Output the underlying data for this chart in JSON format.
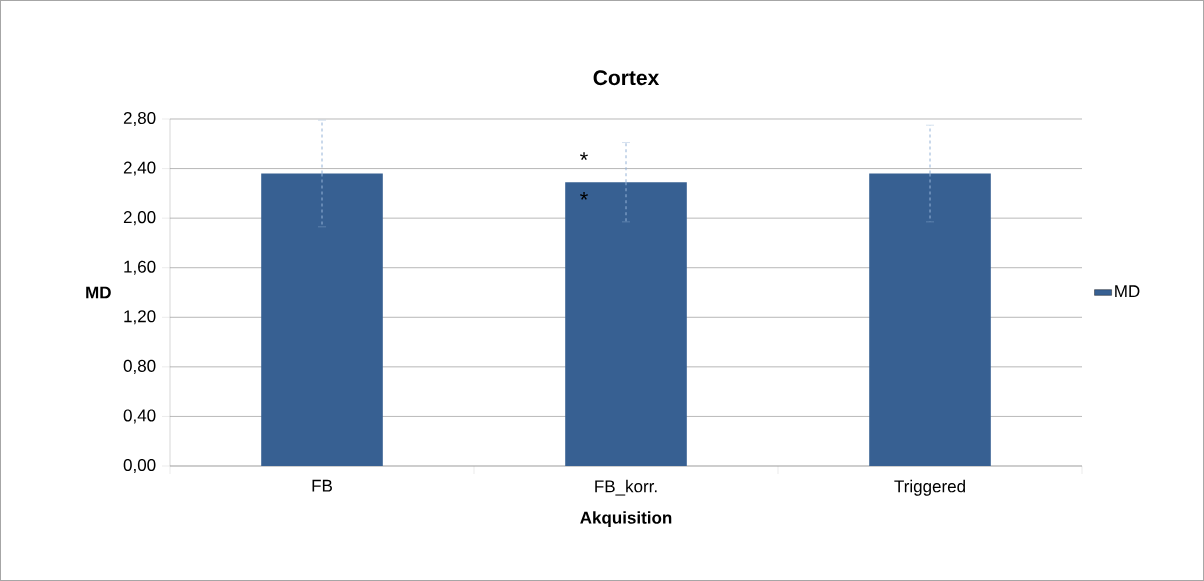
{
  "chart_data": {
    "type": "bar",
    "title": "Cortex",
    "xlabel": "Akquisition",
    "ylabel": "MD",
    "categories": [
      "FB",
      "FB_korr.",
      "Triggered"
    ],
    "series": [
      {
        "name": "MD",
        "color": "#376092",
        "values": [
          2.36,
          2.29,
          2.36
        ],
        "errors": [
          0.43,
          0.32,
          0.39
        ]
      }
    ],
    "ylim": [
      0,
      2.8
    ],
    "yticks": [
      {
        "value": 0,
        "label": "0,00"
      },
      {
        "value": 0.4,
        "label": "0,40"
      },
      {
        "value": 0.8,
        "label": "0,80"
      },
      {
        "value": 1.2,
        "label": "1,20"
      },
      {
        "value": 1.6,
        "label": "1,60"
      },
      {
        "value": 2.0,
        "label": "2,00"
      },
      {
        "value": 2.4,
        "label": "2,40"
      },
      {
        "value": 2.8,
        "label": "2,80"
      }
    ],
    "grid": "y",
    "legend": "right",
    "annotations": [
      {
        "text": "*",
        "x": "FB_korr.",
        "y": 2.47
      },
      {
        "text": "*",
        "x": "FB_korr.",
        "y": 2.15
      }
    ]
  }
}
